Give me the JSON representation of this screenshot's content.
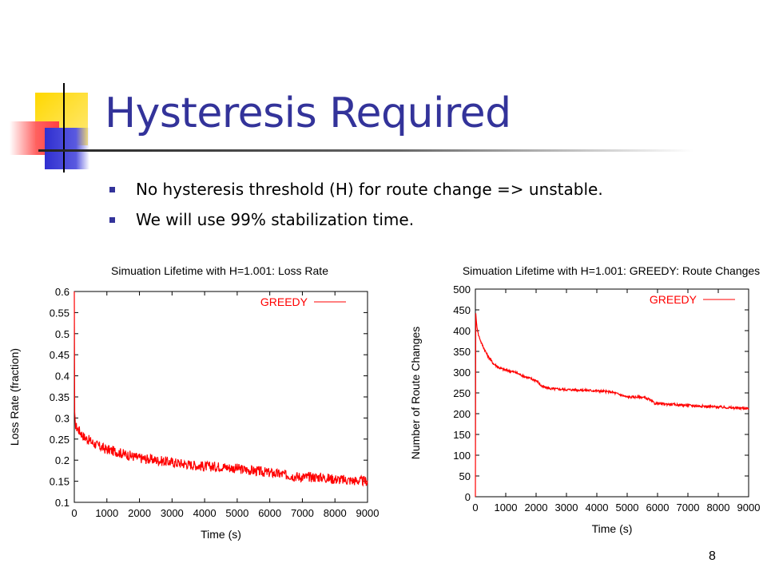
{
  "slide": {
    "title": "Hysteresis Required",
    "bullets": [
      "No hysteresis threshold (H) for route change => unstable.",
      "We will use 99% stabilization time."
    ],
    "page_number": "8",
    "colors": {
      "title": "#33339a",
      "bullet": "#33339a",
      "series": "#ff0000"
    }
  },
  "chart_data": [
    {
      "type": "line",
      "title": "Simuation Lifetime with H=1.001: Loss Rate",
      "xlabel": "Time (s)",
      "ylabel": "Loss Rate (fraction)",
      "xlim": [
        0,
        9000
      ],
      "ylim": [
        0.1,
        0.6
      ],
      "xticks": [
        "0",
        "1000",
        "2000",
        "3000",
        "4000",
        "5000",
        "6000",
        "7000",
        "8000",
        "9000"
      ],
      "yticks": [
        "0.1",
        "0.15",
        "0.2",
        "0.25",
        "0.3",
        "0.35",
        "0.4",
        "0.45",
        "0.5",
        "0.55",
        "0.6"
      ],
      "legend": "top-right",
      "series": [
        {
          "name": "GREEDY",
          "color": "#ff0000",
          "x": [
            0,
            5,
            20,
            50,
            100,
            200,
            300,
            500,
            700,
            1000,
            1300,
            1500,
            2000,
            2500,
            3000,
            3500,
            4000,
            4500,
            5000,
            5500,
            6000,
            6500,
            7000,
            7500,
            8000,
            8500,
            9000
          ],
          "y": [
            0.6,
            0.32,
            0.29,
            0.28,
            0.275,
            0.265,
            0.255,
            0.245,
            0.235,
            0.225,
            0.22,
            0.215,
            0.205,
            0.2,
            0.195,
            0.19,
            0.185,
            0.185,
            0.18,
            0.175,
            0.17,
            0.165,
            0.16,
            0.16,
            0.155,
            0.152,
            0.15
          ],
          "noise": 0.012
        }
      ]
    },
    {
      "type": "line",
      "title": "Simuation Lifetime with H=1.001: GREEDY: Route Changes",
      "xlabel": "Time (s)",
      "ylabel": "Number of Route Changes",
      "xlim": [
        0,
        9000
      ],
      "ylim": [
        0,
        500
      ],
      "xticks": [
        "0",
        "1000",
        "2000",
        "3000",
        "4000",
        "5000",
        "6000",
        "7000",
        "8000",
        "9000"
      ],
      "yticks": [
        "0",
        "50",
        "100",
        "150",
        "200",
        "250",
        "300",
        "350",
        "400",
        "450",
        "500"
      ],
      "legend": "top-right",
      "series": [
        {
          "name": "GREEDY",
          "color": "#ff0000",
          "x": [
            0,
            5,
            30,
            100,
            200,
            400,
            600,
            800,
            1000,
            1300,
            1600,
            2000,
            2200,
            2500,
            3000,
            3500,
            4000,
            4500,
            4800,
            5000,
            5500,
            5700,
            5900,
            6500,
            7000,
            7500,
            8000,
            8500,
            9000
          ],
          "y": [
            0,
            455,
            420,
            390,
            370,
            340,
            320,
            310,
            305,
            300,
            290,
            280,
            265,
            260,
            258,
            257,
            255,
            252,
            245,
            240,
            240,
            235,
            225,
            222,
            220,
            218,
            216,
            214,
            213
          ],
          "noise": 3
        }
      ]
    }
  ]
}
